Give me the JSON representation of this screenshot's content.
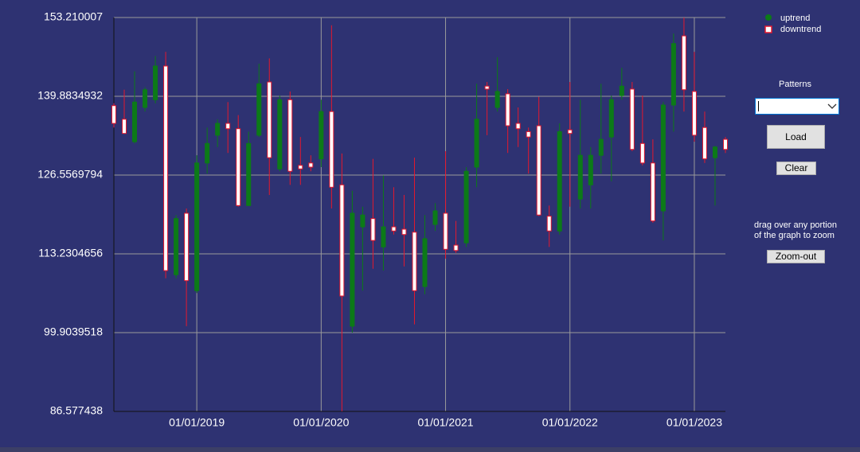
{
  "chart_data": {
    "type": "candlestick",
    "x": [
      "2018-05",
      "2018-06",
      "2018-07",
      "2018-08",
      "2018-09",
      "2018-10",
      "2018-11",
      "2018-12",
      "2019-01",
      "2019-02",
      "2019-03",
      "2019-04",
      "2019-05",
      "2019-06",
      "2019-07",
      "2019-08",
      "2019-09",
      "2019-10",
      "2019-11",
      "2019-12",
      "2020-01",
      "2020-02",
      "2020-03",
      "2020-04",
      "2020-05",
      "2020-06",
      "2020-07",
      "2020-08",
      "2020-09",
      "2020-10",
      "2020-11",
      "2020-12",
      "2021-01",
      "2021-02",
      "2021-03",
      "2021-04",
      "2021-05",
      "2021-06",
      "2021-07",
      "2021-08",
      "2021-09",
      "2021-10",
      "2021-11",
      "2021-12",
      "2022-01",
      "2022-02",
      "2022-03",
      "2022-04",
      "2022-05",
      "2022-06",
      "2022-07",
      "2022-08",
      "2022-09",
      "2022-10",
      "2022-11",
      "2022-12",
      "2023-01",
      "2023-02",
      "2023-03",
      "2023-04"
    ],
    "open": [
      138.3,
      136.0,
      132.2,
      138.0,
      139.3,
      145.0,
      109.7,
      120.1,
      107.0,
      128.6,
      133.3,
      135.3,
      134.4,
      121.4,
      133.3,
      142.3,
      127.6,
      139.3,
      128.2,
      128.6,
      129.3,
      137.3,
      124.9,
      101.0,
      117.8,
      119.2,
      114.4,
      117.8,
      117.4,
      116.9,
      107.7,
      118.2,
      120.1,
      114.7,
      115.1,
      127.9,
      141.6,
      138.0,
      140.3,
      135.3,
      133.9,
      134.9,
      119.6,
      117.1,
      134.2,
      122.5,
      124.9,
      129.9,
      133.0,
      140.0,
      141.1,
      131.9,
      128.6,
      120.5,
      138.4,
      150.1,
      140.7,
      134.6,
      129.5,
      132.6
    ],
    "high": [
      138.7,
      141.0,
      144.1,
      141.4,
      146.7,
      147.4,
      119.8,
      120.9,
      129.9,
      134.6,
      136.0,
      138.9,
      136.7,
      133.9,
      145.4,
      146.3,
      140.0,
      140.7,
      133.0,
      129.9,
      139.3,
      151.9,
      130.2,
      123.9,
      121.2,
      129.3,
      126.5,
      124.5,
      123.2,
      129.5,
      119.8,
      121.8,
      130.6,
      118.8,
      127.9,
      142.0,
      142.3,
      146.5,
      141.1,
      138.0,
      134.6,
      139.8,
      121.4,
      135.3,
      142.3,
      139.3,
      131.3,
      142.0,
      140.0,
      144.7,
      142.3,
      140.0,
      132.6,
      138.9,
      150.5,
      153.2,
      147.4,
      137.3,
      131.5,
      133.0
    ],
    "low": [
      134.6,
      133.6,
      131.9,
      137.3,
      138.7,
      109.1,
      109.1,
      101.0,
      106.6,
      126.8,
      131.3,
      130.3,
      121.2,
      121.4,
      133.0,
      123.2,
      127.2,
      124.9,
      124.9,
      127.2,
      127.9,
      120.9,
      86.6,
      99.9,
      107.0,
      110.7,
      110.4,
      116.5,
      111.1,
      101.3,
      106.4,
      117.1,
      112.4,
      113.4,
      114.4,
      124.5,
      133.3,
      137.3,
      130.3,
      131.3,
      126.8,
      119.6,
      114.4,
      116.5,
      121.2,
      120.9,
      120.9,
      126.8,
      125.5,
      139.3,
      130.6,
      128.2,
      118.5,
      115.5,
      133.9,
      137.3,
      132.2,
      128.6,
      121.4,
      130.3
    ],
    "close": [
      135.3,
      133.6,
      138.9,
      141.0,
      145.0,
      110.4,
      119.2,
      108.7,
      128.6,
      131.9,
      135.3,
      134.4,
      121.4,
      131.9,
      142.0,
      129.5,
      139.3,
      127.2,
      127.6,
      127.9,
      137.3,
      124.5,
      106.1,
      120.1,
      119.8,
      115.5,
      117.8,
      117.1,
      116.5,
      107.0,
      115.8,
      120.5,
      114.0,
      113.8,
      127.2,
      136.0,
      141.1,
      140.7,
      134.9,
      134.4,
      133.0,
      119.8,
      117.1,
      133.9,
      133.6,
      129.9,
      129.9,
      132.6,
      139.3,
      141.6,
      130.9,
      128.6,
      118.8,
      138.4,
      148.8,
      141.0,
      133.3,
      129.3,
      131.3,
      130.9
    ],
    "up": {
      "name": "uptrend",
      "color": "#0c7a18"
    },
    "down": {
      "name": "downtrend",
      "color": "#e3182e",
      "fill": "#ffffff"
    },
    "ylim": [
      86.577438,
      153.210007
    ],
    "yticks": [
      86.577438,
      99.9039518,
      113.2304656,
      126.5569794,
      139.8834932,
      153.210007
    ],
    "xlim": [
      "2018-05",
      "2023-04"
    ],
    "xticks": [
      {
        "value": "2019-01",
        "label": "01/01/2019"
      },
      {
        "value": "2020-01",
        "label": "01/01/2020"
      },
      {
        "value": "2021-01",
        "label": "01/01/2021"
      },
      {
        "value": "2022-01",
        "label": "01/01/2022"
      },
      {
        "value": "2023-01",
        "label": "01/01/2023"
      }
    ],
    "grid": true
  },
  "controls": {
    "patterns_label": "Patterns",
    "load": "Load",
    "clear": "Clear",
    "hint": [
      "drag over any portion",
      "of the graph to zoom"
    ],
    "zoom_out": "Zoom-out"
  }
}
